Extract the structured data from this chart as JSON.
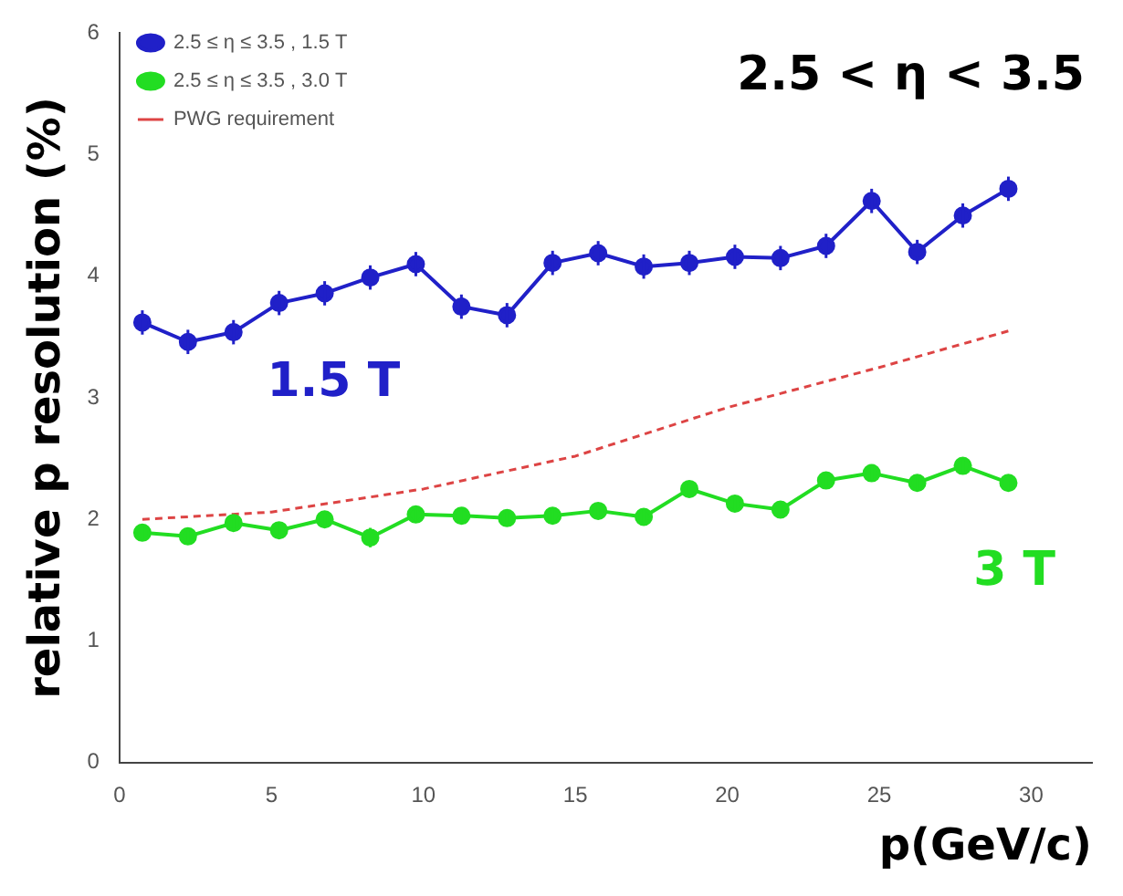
{
  "chart_data": {
    "type": "line",
    "xlabel": "p(GeV/c)",
    "ylabel": "relative p resolution (%)",
    "xlim": [
      0,
      32
    ],
    "xticks": [
      0,
      5,
      10,
      15,
      20,
      25,
      30
    ],
    "ylim": [
      0,
      6
    ],
    "yticks": [
      0,
      1,
      2,
      3,
      4,
      5,
      6
    ],
    "grid": false,
    "legend": "top left",
    "marker": "circle",
    "annotations": [
      "2.5 < η < 3.5",
      "1.5 T",
      "3 T"
    ],
    "series": [
      {
        "name": "2.5 ≤ η ≤ 3.5 , 1.5 T",
        "color": "#2020c8",
        "x": [
          0.75,
          2.25,
          3.75,
          5.25,
          6.75,
          8.25,
          9.75,
          11.25,
          12.75,
          14.25,
          15.75,
          17.25,
          18.75,
          20.25,
          21.75,
          23.25,
          24.75,
          26.25,
          27.75,
          29.25
        ],
        "values": [
          3.62,
          3.46,
          3.54,
          3.78,
          3.86,
          3.99,
          4.1,
          3.75,
          3.68,
          4.11,
          4.19,
          4.08,
          4.11,
          4.16,
          4.15,
          4.25,
          4.62,
          4.2,
          4.5,
          4.72
        ],
        "errors": [
          0.1,
          0.1,
          0.1,
          0.1,
          0.1,
          0.1,
          0.1,
          0.1,
          0.1,
          0.1,
          0.1,
          0.1,
          0.1,
          0.1,
          0.1,
          0.1,
          0.1,
          0.1,
          0.1,
          0.1
        ]
      },
      {
        "name": "2.5 ≤ η ≤ 3.5 , 3.0 T",
        "color": "#22dd22",
        "x": [
          0.75,
          2.25,
          3.75,
          5.25,
          6.75,
          8.25,
          9.75,
          11.25,
          12.75,
          14.25,
          15.75,
          17.25,
          18.75,
          20.25,
          21.75,
          23.25,
          24.75,
          26.25,
          27.75,
          29.25
        ],
        "values": [
          1.89,
          1.86,
          1.97,
          1.91,
          2.0,
          1.85,
          2.04,
          2.03,
          2.01,
          2.03,
          2.07,
          2.02,
          2.25,
          2.13,
          2.08,
          2.32,
          2.38,
          2.3,
          2.44,
          2.3
        ],
        "errors": [
          0.06,
          0.06,
          0.06,
          0.06,
          0.06,
          0.08,
          0.06,
          0.06,
          0.06,
          0.06,
          0.06,
          0.06,
          0.06,
          0.06,
          0.06,
          0.06,
          0.06,
          0.06,
          0.06,
          0.06
        ]
      },
      {
        "name": "PWG requirement",
        "color": "#dd4444",
        "marker": "none",
        "line_style": "dashed",
        "x": [
          0.75,
          5,
          10,
          15,
          20,
          25,
          29.25
        ],
        "values": [
          2.0,
          2.06,
          2.25,
          2.52,
          2.92,
          3.25,
          3.55
        ]
      }
    ]
  }
}
